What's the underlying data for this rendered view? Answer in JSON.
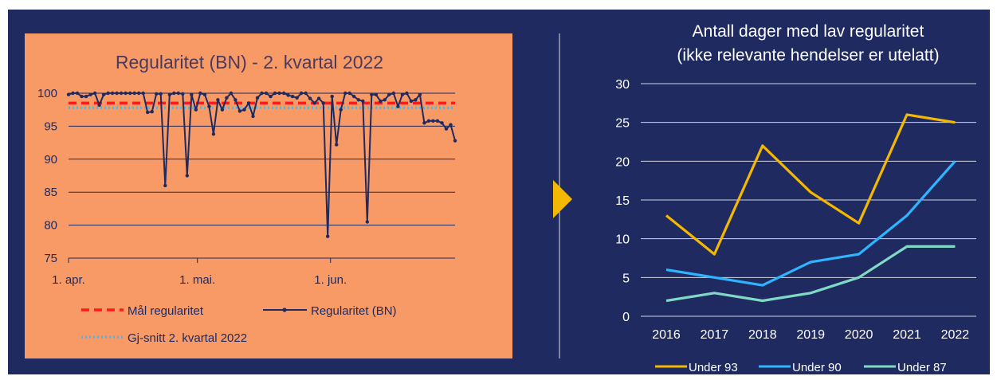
{
  "colors": {
    "background": "#1f2a60",
    "left_panel": "#f79a66",
    "arrow": "#f5b800"
  },
  "chart_data": [
    {
      "type": "line",
      "title": "Regularitet (BN) - 2. kvartal 2022",
      "xlabel": "",
      "ylabel": "",
      "ylim": [
        75,
        100
      ],
      "yticks": [
        "75",
        "80",
        "85",
        "90",
        "95",
        "100"
      ],
      "xticks": [
        "1. apr.",
        "1. mai.",
        "1. jun."
      ],
      "x_start": "2022-04-01",
      "x_end": "2022-06-30",
      "grid": true,
      "legend": "bottom",
      "legend_entries": [
        "Mål regularitet",
        "Regularitet (BN)",
        "Gj-snitt 2. kvartal 2022"
      ],
      "series": [
        {
          "name": "Regularitet (BN)",
          "color": "#1f2a60",
          "values": [
            99.8,
            100,
            100,
            99.5,
            99.5,
            99.8,
            100,
            98.2,
            99.8,
            100,
            100,
            100,
            100,
            100,
            100,
            100,
            100,
            100,
            97.1,
            97.2,
            99.9,
            99.9,
            86,
            99.8,
            100,
            100,
            99.9,
            87.5,
            99.8,
            97.5,
            100,
            99.8,
            98,
            93.8,
            99,
            97.5,
            99.3,
            100,
            99,
            97.3,
            97.5,
            98.5,
            96.5,
            99.3,
            100,
            100,
            99.5,
            100,
            100,
            100,
            99.7,
            99.5,
            99.3,
            100,
            100,
            99.2,
            98.5,
            99.2,
            98.5,
            78.3,
            99.5,
            92.2,
            97.5,
            100,
            100,
            99.5,
            99,
            98.8,
            80.5,
            99.8,
            99.8,
            98.8,
            99,
            99.8,
            100,
            98,
            99.8,
            100,
            98.8,
            99,
            99.8,
            95.5,
            95.8,
            95.8,
            95.8,
            95.5,
            94.6,
            95.2,
            92.8
          ]
        },
        {
          "name": "Mål regularitet",
          "color": "#ff1a1a",
          "values": [
            98.5
          ]
        },
        {
          "name": "Gj-snitt 2. kvartal 2022",
          "color": "#4fb3e6",
          "values": [
            97.8
          ]
        }
      ]
    },
    {
      "type": "line",
      "title": "Antall dager med lav regularitet\n(ikke relevante hendelser er utelatt)",
      "xlabel": "",
      "ylabel": "",
      "ylim": [
        0,
        30
      ],
      "yticks": [
        "0",
        "5",
        "10",
        "15",
        "20",
        "25",
        "30"
      ],
      "categories": [
        "2016",
        "2017",
        "2018",
        "2019",
        "2020",
        "2021",
        "2022"
      ],
      "grid": true,
      "legend": "bottom",
      "series": [
        {
          "name": "Under 93",
          "color": "#f5b800",
          "values": [
            13,
            8,
            22,
            16,
            12,
            26,
            25
          ]
        },
        {
          "name": "Under 90",
          "color": "#2fb4ff",
          "values": [
            6,
            5,
            4,
            7,
            8,
            13,
            20
          ]
        },
        {
          "name": "Under 87",
          "color": "#7fd9c4",
          "values": [
            2,
            3,
            2,
            3,
            5,
            9,
            9
          ]
        }
      ]
    }
  ]
}
